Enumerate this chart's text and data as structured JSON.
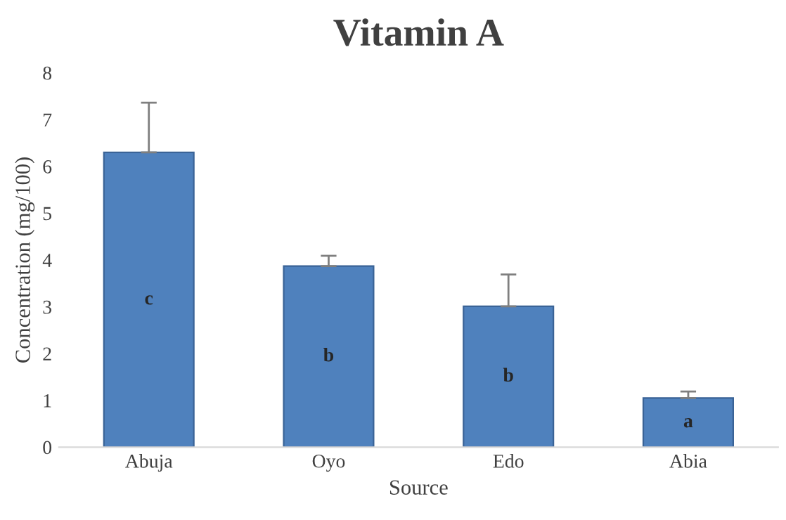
{
  "chart_data": {
    "type": "bar",
    "title": "Vitamin A",
    "xlabel": "Source",
    "ylabel": "Concentration (mg/100)",
    "categories": [
      "Abuja",
      "Oyo",
      "Edo",
      "Abia"
    ],
    "series": [
      {
        "color": "#4f81bd",
        "values": [
          6.3,
          3.87,
          3.01,
          1.05
        ],
        "errors": [
          [
            6.3,
            7.36
          ],
          [
            3.87,
            4.09
          ],
          [
            3.01,
            3.69
          ],
          [
            1.05,
            1.19
          ]
        ]
      }
    ],
    "ylim": [
      0,
      8
    ],
    "yticks": [
      0,
      1,
      2,
      3,
      4,
      5,
      6,
      7,
      8
    ],
    "grid": false,
    "legend": false,
    "annotations": [
      "c",
      "b",
      "b",
      "a"
    ]
  }
}
